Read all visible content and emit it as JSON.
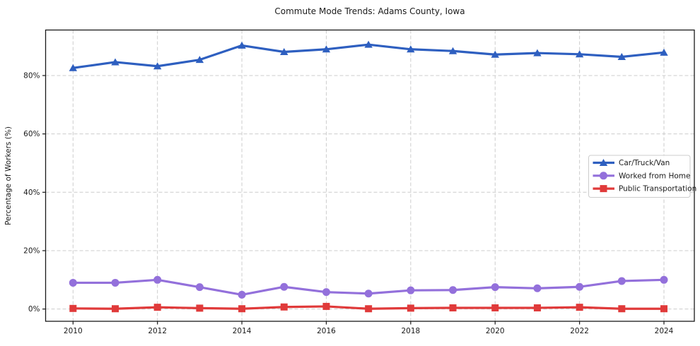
{
  "chart_data": {
    "type": "line",
    "title": "Commute Mode Trends: Adams County, Iowa",
    "xlabel": "",
    "ylabel": "Percentage of Workers (%)",
    "x": [
      2010,
      2011,
      2012,
      2013,
      2014,
      2015,
      2016,
      2017,
      2018,
      2019,
      2020,
      2021,
      2022,
      2023,
      2024
    ],
    "x_ticks": [
      2010,
      2012,
      2014,
      2016,
      2018,
      2020,
      2022,
      2024
    ],
    "x_tick_labels": [
      "2010",
      "2012",
      "2014",
      "2016",
      "2018",
      "2020",
      "2022",
      "2024"
    ],
    "y_ticks": [
      0,
      20,
      40,
      60,
      80
    ],
    "y_tick_labels": [
      "0%",
      "20%",
      "40%",
      "60%",
      "80%"
    ],
    "xlim": [
      2009.35,
      2024.72
    ],
    "ylim": [
      -4.2,
      95.6
    ],
    "grid": true,
    "grid_style": "dashed",
    "legend_position": "center-right",
    "series": [
      {
        "name": "Car/Truck/Van",
        "color": "#2e5fc0",
        "marker": "triangle",
        "values": [
          82.6,
          84.6,
          83.2,
          85.4,
          90.3,
          88.1,
          89.0,
          90.6,
          89.0,
          88.4,
          87.2,
          87.7,
          87.3,
          86.4,
          87.9
        ]
      },
      {
        "name": "Worked from Home",
        "color": "#9370db",
        "marker": "circle",
        "values": [
          9.0,
          9.0,
          10.0,
          7.5,
          4.9,
          7.6,
          5.8,
          5.3,
          6.4,
          6.5,
          7.5,
          7.1,
          7.6,
          9.6,
          10.0
        ]
      },
      {
        "name": "Public Transportation",
        "color": "#e03a3a",
        "marker": "square",
        "values": [
          0.2,
          0.1,
          0.6,
          0.3,
          0.1,
          0.7,
          0.9,
          0.1,
          0.3,
          0.4,
          0.4,
          0.4,
          0.6,
          0.1,
          0.1
        ]
      }
    ],
    "style": {
      "grid_color": "#cccccc",
      "spine_color": "#1a1a1a",
      "legend_border_color": "#cccccc",
      "background": "#ffffff"
    }
  }
}
